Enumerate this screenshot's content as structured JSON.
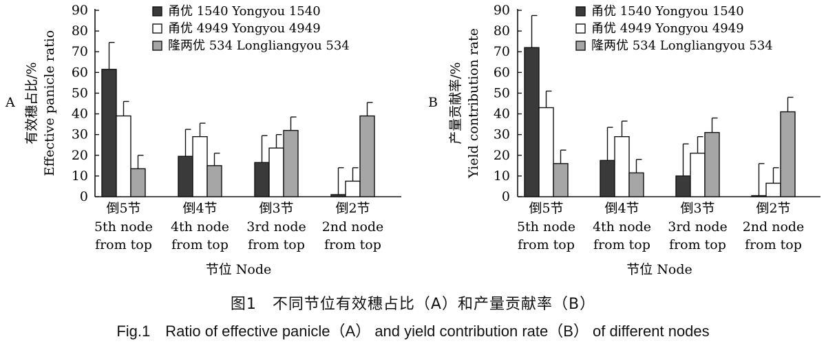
{
  "caption": {
    "cn": "图1　不同节位有效穗占比（A）和产量贡献率（B）",
    "en": "Fig.1　Ratio of effective panicle（A） and yield contribution rate（B） of different nodes"
  },
  "chart_data": [
    {
      "panel": "A",
      "type": "bar",
      "ylabel": [
        "有效穗占比/%",
        "Effective panicle ratio"
      ],
      "xlabel": "节位 Node",
      "ylim": [
        0,
        90
      ],
      "yticks": [
        0,
        10,
        20,
        30,
        40,
        50,
        60,
        70,
        80,
        90
      ],
      "grid": false,
      "legend_position": "top",
      "categories": [
        [
          "倒5节",
          "5th node",
          "from top"
        ],
        [
          "倒4节",
          "4th node",
          "from top"
        ],
        [
          "倒3节",
          "3rd node",
          "from top"
        ],
        [
          "倒2节",
          "2nd node",
          "from top"
        ]
      ],
      "series": [
        {
          "name": "甬优 1540 Yongyou 1540",
          "color": "#3a3a3a",
          "values": [
            61.5,
            19.5,
            16.5,
            1.0
          ],
          "errors": [
            13.0,
            13.0,
            13.0,
            13.0
          ]
        },
        {
          "name": "甬优 4949 Yongyou 4949",
          "color": "#ffffff",
          "values": [
            39.0,
            29.0,
            23.5,
            7.5
          ],
          "errors": [
            7.0,
            6.5,
            6.5,
            6.5
          ]
        },
        {
          "name": "隆两优 534 Longliangyou 534",
          "color": "#a6a6a6",
          "values": [
            13.5,
            15.0,
            32.0,
            39.0
          ],
          "errors": [
            6.5,
            6.0,
            6.5,
            6.5
          ]
        }
      ]
    },
    {
      "panel": "B",
      "type": "bar",
      "ylabel": [
        "产量贡献率/%",
        "Yield contribution rate"
      ],
      "xlabel": "节位 Node",
      "ylim": [
        0,
        90
      ],
      "yticks": [
        0,
        10,
        20,
        30,
        40,
        50,
        60,
        70,
        80,
        90
      ],
      "grid": false,
      "legend_position": "top",
      "categories": [
        [
          "倒5节",
          "5th node",
          "from top"
        ],
        [
          "倒4节",
          "4th node",
          "from top"
        ],
        [
          "倒3节",
          "3rd node",
          "from top"
        ],
        [
          "倒2节",
          "2nd node",
          "from top"
        ]
      ],
      "series": [
        {
          "name": "甬优 1540 Yongyou 1540",
          "color": "#3a3a3a",
          "values": [
            72.0,
            17.5,
            10.0,
            0.5
          ],
          "errors": [
            15.5,
            16.0,
            15.5,
            15.5
          ]
        },
        {
          "name": "甬优 4949 Yongyou 4949",
          "color": "#ffffff",
          "values": [
            43.0,
            29.0,
            21.0,
            6.5
          ],
          "errors": [
            8.0,
            7.5,
            8.0,
            7.5
          ]
        },
        {
          "name": "隆两优 534 Longliangyou 534",
          "color": "#a6a6a6",
          "values": [
            16.0,
            11.5,
            31.0,
            41.0
          ],
          "errors": [
            6.5,
            6.5,
            7.0,
            7.0
          ]
        }
      ]
    }
  ]
}
